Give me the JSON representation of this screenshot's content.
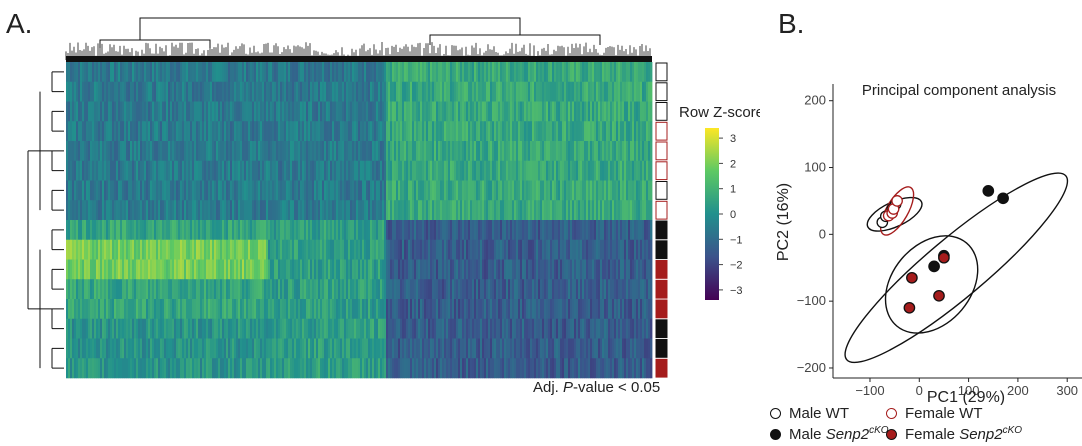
{
  "panel_a": {
    "letter": "A.",
    "footnote_prefix": "Adj. ",
    "footnote_italic": "P",
    "footnote_suffix": "-value < 0.05"
  },
  "panel_b": {
    "letter": "B."
  },
  "colors": {
    "male_wt": "#ffffff",
    "male_ko": "#111111",
    "female_wt": "#ffffff",
    "female_ko": "#a51c1c",
    "female_edge": "#a51c1c",
    "male_edge": "#111111"
  },
  "chart_data": [
    {
      "type": "heatmap",
      "title": "",
      "colorbar": {
        "title": "Row Z-score",
        "ticks": [
          3,
          2,
          1,
          0,
          -1,
          -2,
          -3
        ],
        "tick_labels": [
          "3",
          "2",
          "1",
          "0",
          "−1",
          "−2",
          "−3"
        ],
        "range": [
          -3.4,
          3.4
        ]
      },
      "annotation_groups": [
        "Male WT",
        "Male WT",
        "Male WT",
        "Female WT",
        "Female WT",
        "Female WT",
        "Male WT",
        "Female WT",
        "Male Senp2cKO",
        "Male Senp2cKO",
        "Female Senp2cKO",
        "Female Senp2cKO",
        "Female Senp2cKO",
        "Male Senp2cKO",
        "Male Senp2cKO",
        "Female Senp2cKO"
      ],
      "column_clusters": 3,
      "grid": false
    },
    {
      "type": "scatter",
      "title": "Principal component analysis",
      "xlabel": "PC1 (29%)",
      "ylabel": "PC2 (16%)",
      "xlim": [
        -175,
        330
      ],
      "ylim": [
        -215,
        225
      ],
      "xticks": [
        -100,
        0,
        100,
        200,
        300
      ],
      "yticks": [
        -200,
        -100,
        0,
        100,
        200
      ],
      "tick_labels_x": [
        "−100",
        "0",
        "100",
        "200",
        "300"
      ],
      "tick_labels_y": [
        "−200",
        "−100",
        "0",
        "100",
        "200"
      ],
      "grid": false,
      "legend_position": "bottom",
      "series": [
        {
          "name": "Male WT",
          "fill": "#ffffff",
          "edge": "#111111",
          "points": [
            [
              -75,
              18
            ],
            [
              -68,
              27
            ],
            [
              -55,
              38
            ],
            [
              -48,
              45
            ]
          ]
        },
        {
          "name": "Male Senp2cKO",
          "fill": "#111111",
          "edge": "#111111",
          "points": [
            [
              140,
              65
            ],
            [
              170,
              54
            ],
            [
              30,
              -48
            ],
            [
              50,
              -32
            ]
          ]
        },
        {
          "name": "Female WT",
          "fill": "#ffffff",
          "edge": "#a51c1c",
          "points": [
            [
              -62,
              28
            ],
            [
              -55,
              32
            ],
            [
              -52,
              38
            ],
            [
              -45,
              50
            ]
          ]
        },
        {
          "name": "Female Senp2cKO",
          "fill": "#a51c1c",
          "edge": "#111111",
          "points": [
            [
              -15,
              -65
            ],
            [
              -20,
              -110
            ],
            [
              40,
              -92
            ],
            [
              50,
              -35
            ]
          ]
        }
      ],
      "ellipses": [
        {
          "group": "Male WT",
          "color": "#111111",
          "center": [
            -50,
            30
          ],
          "rx": 60,
          "ry": 25,
          "angle": 25
        },
        {
          "group": "Female WT",
          "color": "#a51c1c",
          "center": [
            -45,
            35
          ],
          "rx": 55,
          "ry": 22,
          "angle": 60
        },
        {
          "group": "Male Senp2cKO",
          "color": "#111111",
          "center": [
            75,
            -50
          ],
          "rx": 290,
          "ry": 60,
          "angle": 40
        },
        {
          "group": "Female Senp2cKO",
          "color": "#111111",
          "center": [
            25,
            -75
          ],
          "rx": 110,
          "ry": 80,
          "angle": 50
        }
      ]
    }
  ],
  "legend": {
    "items": [
      {
        "label": "Male WT",
        "suffix": "",
        "fill": "#ffffff",
        "edge": "#111111"
      },
      {
        "label": "Female WT",
        "suffix": "",
        "fill": "#ffffff",
        "edge": "#a51c1c"
      },
      {
        "label": "Male ",
        "italic": "Senp2",
        "sup": "cKO",
        "fill": "#111111",
        "edge": "#111111"
      },
      {
        "label": "Female ",
        "italic": "Senp2",
        "sup": "cKO",
        "fill": "#a51c1c",
        "edge": "#111111"
      }
    ]
  }
}
